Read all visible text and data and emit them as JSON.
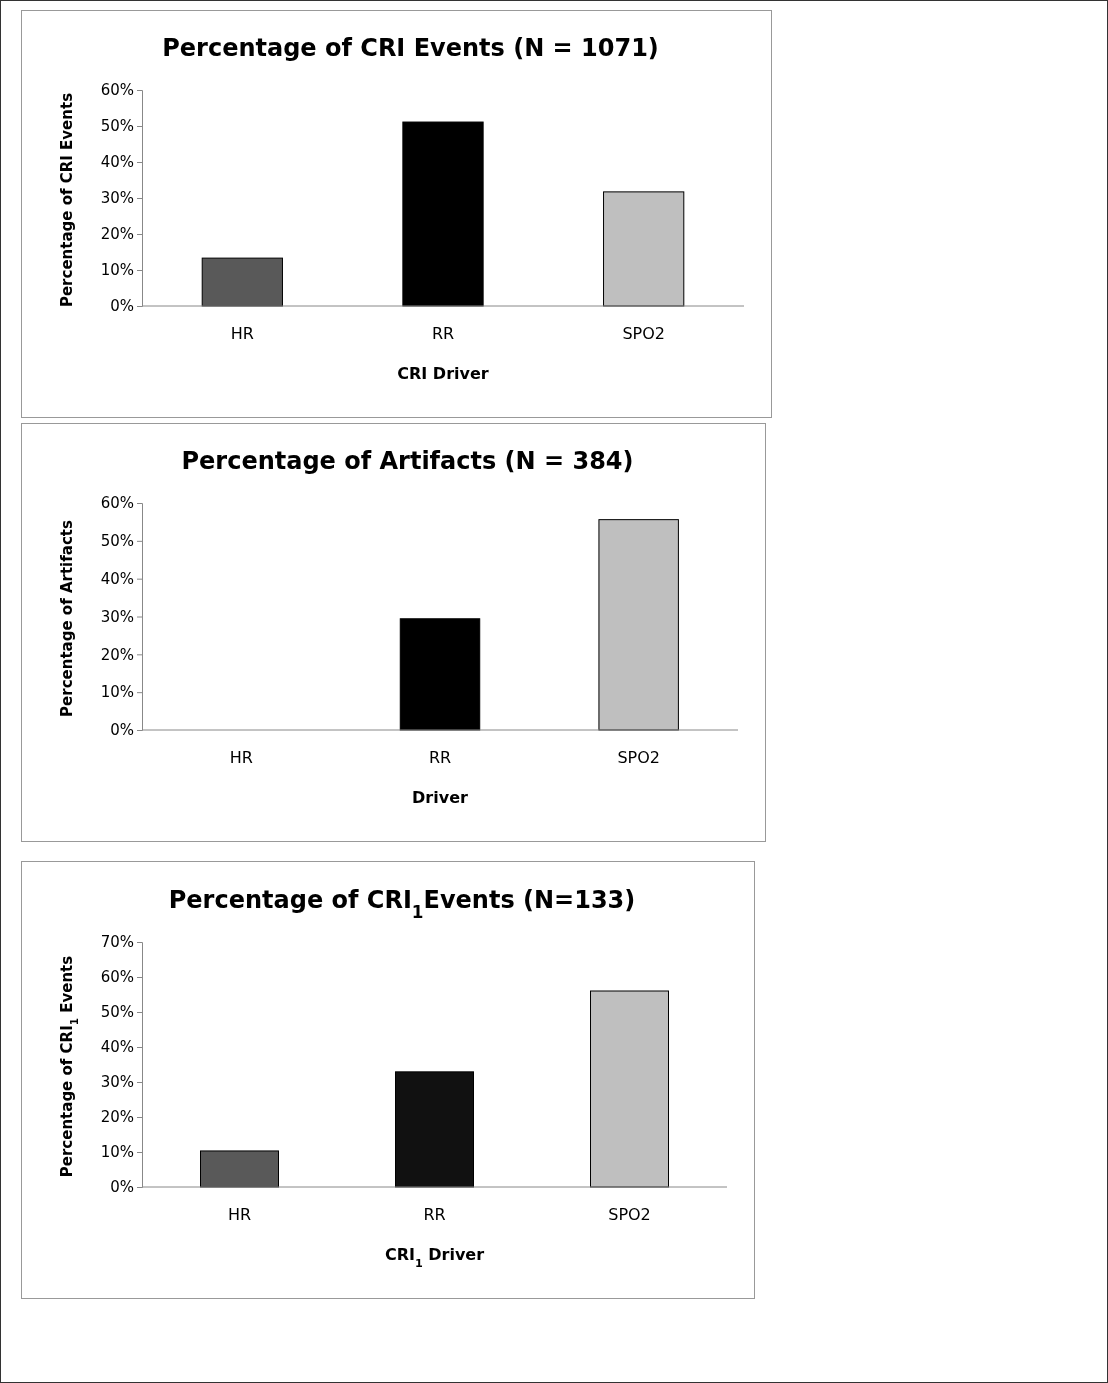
{
  "chart_data": [
    {
      "type": "bar",
      "title": "Percentage of CRI Events (N = 1071)",
      "xlabel": "CRI Driver",
      "ylabel": "Percentage of CRI Events",
      "categories": [
        "HR",
        "RR",
        "SPO2"
      ],
      "values": [
        13.3,
        51.1,
        31.7
      ],
      "colors": [
        "#595959",
        "#000000",
        "#bfbfbf"
      ],
      "ylim": [
        0,
        60
      ],
      "yticks": [
        {
          "value": 0,
          "label": "0%"
        },
        {
          "value": 10,
          "label": "10%"
        },
        {
          "value": 20,
          "label": "20%"
        },
        {
          "value": 30,
          "label": "30%"
        },
        {
          "value": 40,
          "label": "40%"
        },
        {
          "value": 50,
          "label": "50%"
        },
        {
          "value": 60,
          "label": "60%"
        }
      ]
    },
    {
      "type": "bar",
      "title": "Percentage of Artifacts (N = 384)",
      "xlabel": "Driver",
      "ylabel": "Percentage of Artifacts",
      "categories": [
        "HR",
        "RR",
        "SPO2"
      ],
      "values": [
        0,
        29.4,
        55.6
      ],
      "colors": [
        "#595959",
        "#000000",
        "#bfbfbf"
      ],
      "ylim": [
        0,
        60
      ],
      "yticks": [
        {
          "value": 0,
          "label": "0%"
        },
        {
          "value": 10,
          "label": "10%"
        },
        {
          "value": 20,
          "label": "20%"
        },
        {
          "value": 30,
          "label": "30%"
        },
        {
          "value": 40,
          "label": "40%"
        },
        {
          "value": 50,
          "label": "50%"
        },
        {
          "value": 60,
          "label": "60%"
        }
      ]
    },
    {
      "type": "bar",
      "title": "Percentage of CRI$_{1}$Events (N=133)",
      "xlabel": "CRI$_{1}$ Driver",
      "ylabel": "Percentage of CRI$_{1}$ Events",
      "categories": [
        "HR",
        "RR",
        "SPO2"
      ],
      "values": [
        10.3,
        32.9,
        56.0
      ],
      "colors": [
        "#595959",
        "#111111",
        "#bfbfbf"
      ],
      "ylim": [
        0,
        70
      ],
      "yticks": [
        {
          "value": 0,
          "label": "0%"
        },
        {
          "value": 10,
          "label": "10%"
        },
        {
          "value": 20,
          "label": "20%"
        },
        {
          "value": 30,
          "label": "30%"
        },
        {
          "value": 40,
          "label": "40%"
        },
        {
          "value": 50,
          "label": "50%"
        },
        {
          "value": 60,
          "label": "60%"
        },
        {
          "value": 70,
          "label": "70%"
        }
      ]
    }
  ]
}
